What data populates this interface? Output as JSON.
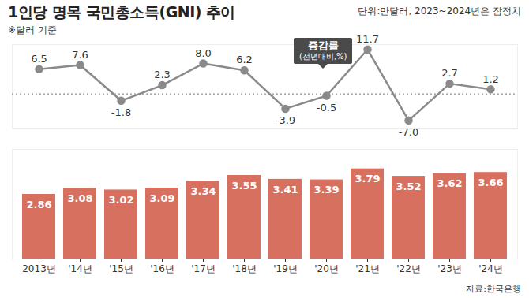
{
  "chart_data": [
    {
      "type": "line",
      "title": "1인당 명목 국민총소득(GNI) 추이",
      "subtitle": "단위:만달러, 2023~2024년은 잠정치",
      "note": "※달러 기준",
      "annotations": [
        "증감률",
        "(전년대비,%)"
      ],
      "categories": [
        "2013년",
        "'14년",
        "'15년",
        "'16년",
        "'17년",
        "'18년",
        "'19년",
        "'20년",
        "'21년",
        "'22년",
        "'23년",
        "'24년"
      ],
      "values": [
        6.5,
        7.6,
        -1.8,
        2.3,
        8.0,
        6.2,
        -3.9,
        -0.5,
        11.7,
        -7.0,
        2.7,
        1.2
      ],
      "value_labels": [
        "6.5",
        "7.6",
        "-1.8",
        "2.3",
        "8.0",
        "6.2",
        "-3.9",
        "-0.5",
        "11.7",
        "-7.0",
        "2.7",
        "1.2"
      ],
      "color": "#8a8a8a",
      "marker": "circle",
      "ylim": [
        -9,
        13
      ],
      "yticks": [
        0
      ],
      "grid": true,
      "data_labels": true,
      "tick_labels": false
    },
    {
      "type": "bar",
      "caption": "자료:한국은행",
      "categories": [
        "2013년",
        "'14년",
        "'15년",
        "'16년",
        "'17년",
        "'18년",
        "'19년",
        "'20년",
        "'21년",
        "'22년",
        "'23년",
        "'24년"
      ],
      "values": [
        2.86,
        3.08,
        3.02,
        3.09,
        3.34,
        3.55,
        3.41,
        3.39,
        3.79,
        3.52,
        3.62,
        3.66
      ],
      "color": "#d8705f",
      "ylim": [
        0.5,
        4.5
      ],
      "data_labels": true,
      "tick_labels": "x"
    }
  ]
}
